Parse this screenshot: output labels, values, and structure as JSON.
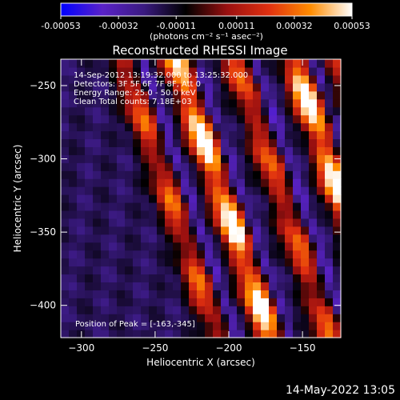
{
  "chart_data": {
    "type": "heatmap",
    "title": "Reconstructed RHESSI Image",
    "xlabel": "Heliocentric X (arcsec)",
    "ylabel": "Heliocentric Y (arcsec)",
    "xlim": [
      -314,
      -124
    ],
    "ylim": [
      -422,
      -232
    ],
    "x_ticks": [
      -300,
      -250,
      -200,
      -150
    ],
    "y_ticks": [
      -250,
      -300,
      -350,
      -400
    ],
    "colorbar": {
      "ticks": [
        "-0.00053",
        "-0.00032",
        "-0.00011",
        "0.00011",
        "0.00032",
        "0.00053"
      ],
      "tick_values": [
        -0.00053,
        -0.00032,
        -0.00011,
        0.00011,
        0.00032,
        0.00053
      ],
      "unit_label": "(photons cm⁻² s⁻¹ asec⁻²)",
      "colors": [
        "#0000ff",
        "#5a22c8",
        "#3a1a80",
        "#000000",
        "#9a1010",
        "#e03010",
        "#ff8c00",
        "#ffffff"
      ]
    },
    "annotations": [
      "14-Sep-2012 13:19:32.000 to 13:25:32.000",
      "Detectors: 3F 5F 6F 7F 8F, Att 0",
      "Energy Range: 25.0 - 50.0 keV",
      "Clean      Total counts: 7.18E+03"
    ],
    "peak_label": "Position of Peak = [-163,-345]",
    "peak_position": [
      -163,
      -345
    ],
    "ridges": [
      {
        "x_at_top": -272,
        "slope": -0.34,
        "amplitude": 0.00032
      },
      {
        "x_at_top": -236,
        "slope": -0.34,
        "amplitude": 0.00053
      },
      {
        "x_at_top": -196,
        "slope": -0.34,
        "amplitude": 0.00032
      },
      {
        "x_at_top": -156,
        "slope": -0.34,
        "amplitude": 0.00053
      },
      {
        "x_at_top": -126,
        "slope": -0.34,
        "amplitude": 0.00032
      }
    ]
  },
  "timestamp": "14-May-2022 13:05"
}
